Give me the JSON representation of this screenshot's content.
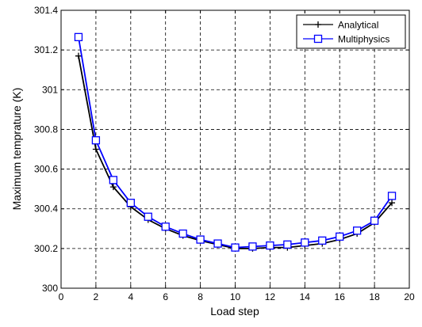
{
  "chart_data": {
    "type": "line",
    "title": "",
    "xlabel": "Load step",
    "ylabel": "Maximum temprature (K)",
    "xlim": [
      0,
      20
    ],
    "ylim": [
      300,
      301.4
    ],
    "xticks": [
      "0",
      "2",
      "4",
      "6",
      "8",
      "10",
      "12",
      "14",
      "16",
      "18",
      "20"
    ],
    "yticks": [
      "300",
      "300.2",
      "300.4",
      "300.6",
      "300.8",
      "301",
      "301.2",
      "301.4"
    ],
    "grid": true,
    "legend_position": "top-right",
    "x": [
      1,
      2,
      3,
      4,
      5,
      6,
      7,
      8,
      9,
      10,
      11,
      12,
      13,
      14,
      15,
      16,
      17,
      18,
      19
    ],
    "series": [
      {
        "name": "Analytical",
        "color": "#000000",
        "marker": "plus",
        "values": [
          301.17,
          300.7,
          300.51,
          300.41,
          300.345,
          300.3,
          300.265,
          300.24,
          300.22,
          300.2,
          300.2,
          300.205,
          300.205,
          300.215,
          300.225,
          300.245,
          300.275,
          300.33,
          300.43
        ]
      },
      {
        "name": "Multiphysics",
        "color": "#0000ff",
        "marker": "square",
        "values": [
          301.265,
          300.745,
          300.545,
          300.43,
          300.36,
          300.31,
          300.275,
          300.245,
          300.225,
          300.205,
          300.21,
          300.215,
          300.22,
          300.23,
          300.24,
          300.26,
          300.29,
          300.34,
          300.465
        ]
      }
    ]
  }
}
